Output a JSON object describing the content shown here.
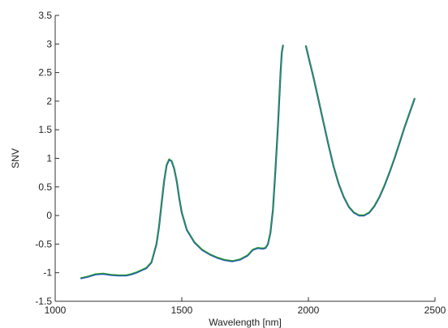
{
  "chart_data": {
    "type": "line",
    "title": "",
    "xlabel": "Wavelength [nm]",
    "ylabel": "SNV",
    "xlim": [
      1000,
      2500
    ],
    "ylim": [
      -1.5,
      3.5
    ],
    "grid": false,
    "xticks": [
      1000,
      1500,
      2000,
      2500
    ],
    "xtick_labels": [
      "1000",
      "1500",
      "2000",
      "2500"
    ],
    "yticks": [
      -1.5,
      -1,
      -0.5,
      0,
      0.5,
      1,
      1.5,
      2,
      2.5,
      3,
      3.5
    ],
    "ytick_labels": [
      "-1.5",
      "-1",
      "-0.5",
      "0",
      "0.5",
      "1",
      "1.5",
      "2",
      "2.5",
      "3",
      "3.5"
    ],
    "series": [
      {
        "color": "#1f4fbf",
        "segments": [
          {
            "x": [
              1100,
              1130,
              1160,
              1190,
              1220,
              1250,
              1280,
              1300,
              1320,
              1340,
              1360,
              1380,
              1400,
              1410,
              1420,
              1430,
              1440,
              1450,
              1460,
              1470,
              1480,
              1490,
              1500,
              1520,
              1550,
              1580,
              1610,
              1640,
              1670,
              1700,
              1730,
              1760,
              1780,
              1800,
              1820,
              1830,
              1840,
              1850,
              1860,
              1870,
              1880,
              1890,
              1895,
              1900
            ],
            "y": [
              -1.1,
              -1.07,
              -1.03,
              -1.02,
              -1.04,
              -1.05,
              -1.05,
              -1.03,
              -1.0,
              -0.96,
              -0.92,
              -0.82,
              -0.5,
              -0.2,
              0.2,
              0.6,
              0.88,
              0.98,
              0.95,
              0.82,
              0.6,
              0.3,
              0.05,
              -0.25,
              -0.47,
              -0.6,
              -0.68,
              -0.74,
              -0.78,
              -0.8,
              -0.77,
              -0.7,
              -0.6,
              -0.57,
              -0.58,
              -0.57,
              -0.5,
              -0.3,
              0.1,
              0.8,
              1.6,
              2.5,
              2.85,
              2.98
            ]
          },
          {
            "x": [
              1990,
              2000,
              2020,
              2040,
              2060,
              2080,
              2100,
              2120,
              2140,
              2160,
              2180,
              2200,
              2220,
              2240,
              2260,
              2280,
              2300,
              2320,
              2340,
              2360,
              2380,
              2400,
              2420
            ],
            "y": [
              2.97,
              2.78,
              2.42,
              2.02,
              1.62,
              1.22,
              0.85,
              0.55,
              0.32,
              0.15,
              0.05,
              0.0,
              0.0,
              0.05,
              0.16,
              0.32,
              0.52,
              0.75,
              1.0,
              1.27,
              1.55,
              1.8,
              2.05
            ]
          }
        ]
      },
      {
        "color": "#2ca02c",
        "segments": [
          {
            "x": [
              1100,
              1130,
              1160,
              1190,
              1220,
              1250,
              1280,
              1300,
              1320,
              1340,
              1360,
              1380,
              1400,
              1410,
              1420,
              1430,
              1440,
              1450,
              1460,
              1470,
              1480,
              1490,
              1500,
              1520,
              1550,
              1580,
              1610,
              1640,
              1670,
              1700,
              1730,
              1760,
              1780,
              1800,
              1820,
              1830,
              1840,
              1850,
              1860,
              1870,
              1880,
              1890,
              1895,
              1900
            ],
            "y": [
              -1.09,
              -1.06,
              -1.02,
              -1.01,
              -1.03,
              -1.04,
              -1.04,
              -1.02,
              -0.99,
              -0.95,
              -0.91,
              -0.81,
              -0.49,
              -0.19,
              0.21,
              0.61,
              0.89,
              0.99,
              0.96,
              0.83,
              0.61,
              0.31,
              0.06,
              -0.24,
              -0.46,
              -0.59,
              -0.67,
              -0.73,
              -0.77,
              -0.79,
              -0.76,
              -0.69,
              -0.59,
              -0.56,
              -0.57,
              -0.56,
              -0.49,
              -0.29,
              0.11,
              0.81,
              1.61,
              2.51,
              2.86,
              2.99
            ]
          },
          {
            "x": [
              1990,
              2000,
              2020,
              2040,
              2060,
              2080,
              2100,
              2120,
              2140,
              2160,
              2180,
              2200,
              2220,
              2240,
              2260,
              2280,
              2300,
              2320,
              2340,
              2360,
              2380,
              2400,
              2420
            ],
            "y": [
              2.98,
              2.79,
              2.43,
              2.03,
              1.63,
              1.23,
              0.86,
              0.56,
              0.33,
              0.16,
              0.06,
              0.01,
              0.01,
              0.06,
              0.17,
              0.33,
              0.53,
              0.76,
              1.01,
              1.28,
              1.56,
              1.81,
              2.06
            ]
          }
        ]
      }
    ]
  }
}
